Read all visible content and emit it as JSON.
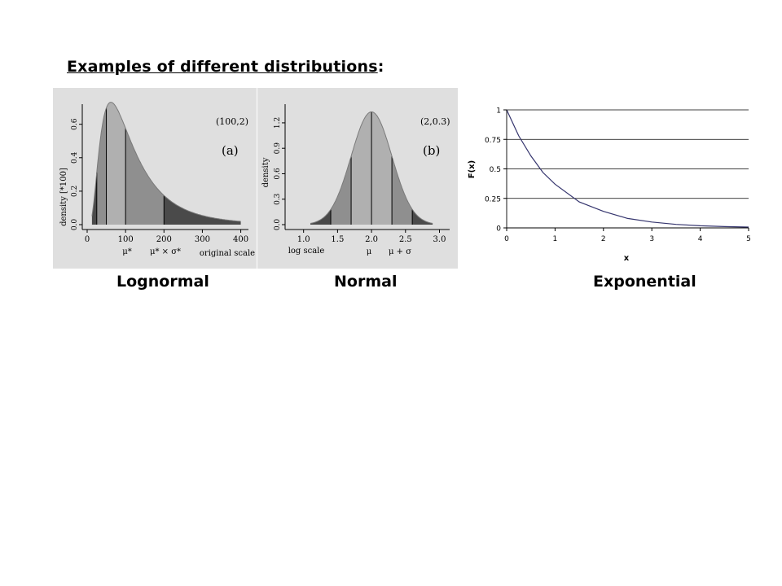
{
  "heading": {
    "text": "Examples of different distributions",
    "suffix": ":"
  },
  "captions": [
    "Lognormal",
    "Normal",
    "Exponential"
  ],
  "colors": {
    "scan_bg": "#dfdfdf",
    "shade_light": "#b0b0b0",
    "shade_mid": "#8f8f8f",
    "shade_dark": "#4a4a4a",
    "curve": "#35356e",
    "grid": "#000000"
  },
  "chart_data": [
    {
      "type": "area",
      "panel_label": "(a)",
      "params": "(100,2)",
      "ylabel": "density [*100]",
      "xlabel": "original scale",
      "x_ticks": [
        "0",
        "100",
        "200",
        "300",
        "400"
      ],
      "y_ticks": [
        "0.0",
        "0.2",
        "0.4",
        "0.6"
      ],
      "xlim": [
        0,
        420
      ],
      "ylim": [
        0,
        0.72
      ],
      "markers": [
        "μ*",
        "μ* × σ*"
      ],
      "bands": [
        12.5,
        25,
        50,
        100,
        200,
        400
      ],
      "distribution": {
        "kind": "lognormal",
        "median": 100,
        "sigma_factor": 2
      }
    },
    {
      "type": "area",
      "panel_label": "(b)",
      "params": "(2,0.3)",
      "ylabel": "density",
      "xlabel": "log scale",
      "x_ticks": [
        "1.0",
        "1.5",
        "2.0",
        "2.5",
        "3.0"
      ],
      "y_ticks": [
        "0.0",
        "0.3",
        "0.6",
        "0.9",
        "1.2"
      ],
      "xlim": [
        0.8,
        3.15
      ],
      "ylim": [
        0,
        1.42
      ],
      "markers": [
        "μ",
        "μ + σ"
      ],
      "bands": [
        1.1,
        1.4,
        1.7,
        2.0,
        2.3,
        2.6,
        2.9
      ],
      "distribution": {
        "kind": "normal",
        "mean": 2,
        "sd": 0.3
      }
    },
    {
      "type": "line",
      "title": "",
      "xlabel": "x",
      "ylabel": "F(x)",
      "x_ticks": [
        "0",
        "1",
        "2",
        "3",
        "4",
        "5"
      ],
      "y_ticks": [
        "0",
        "0.25",
        "0.5",
        "0.75",
        "1"
      ],
      "xlim": [
        0,
        5
      ],
      "ylim": [
        0,
        1
      ],
      "grid": "horizontal",
      "series": [
        {
          "x": [
            0,
            0.25,
            0.5,
            0.75,
            1,
            1.5,
            2,
            2.5,
            3,
            3.5,
            4,
            4.5,
            5
          ],
          "y": [
            1,
            0.78,
            0.61,
            0.47,
            0.37,
            0.22,
            0.14,
            0.08,
            0.05,
            0.03,
            0.018,
            0.011,
            0.007
          ]
        }
      ]
    }
  ]
}
